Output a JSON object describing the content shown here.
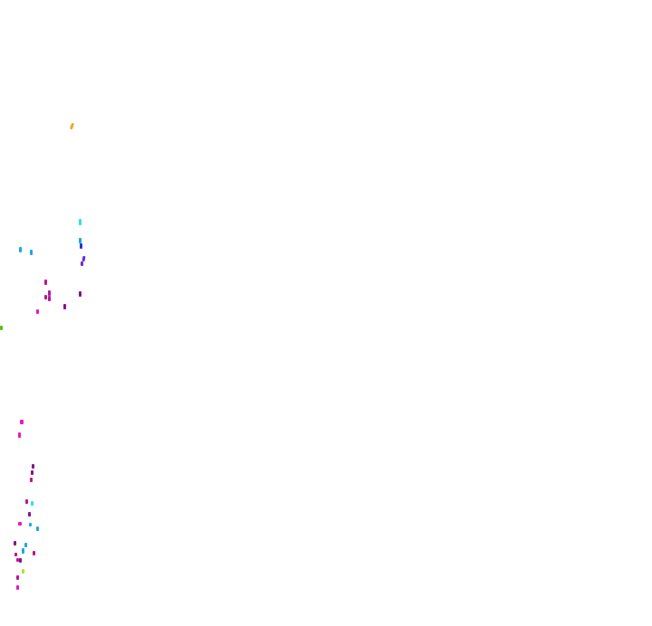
{
  "background_color": "#ffffff",
  "speck_colors": [
    "#f5a623",
    "#2fe3d6",
    "#1aa7e8",
    "#2a31d9",
    "#6a2bd6",
    "#b01aa6",
    "#c2128c",
    "#8a0e8f",
    "#5cbf18",
    "#e616c9",
    "#b3e03a"
  ]
}
